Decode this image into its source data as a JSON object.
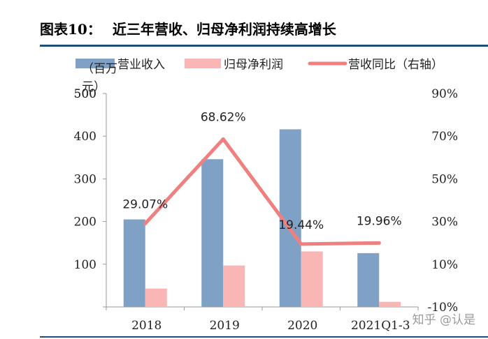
{
  "figure": {
    "number": "图表10：",
    "title": "近三年营收、归母净利润持续高增长"
  },
  "watermark": "知乎 @认是",
  "chart_data": {
    "type": "bar",
    "categories": [
      "2018",
      "2019",
      "2020",
      "2021Q1-3"
    ],
    "y_label": "（百万元）",
    "ylim": [
      0,
      500
    ],
    "y_ticks": [
      0,
      100,
      200,
      300,
      400,
      500
    ],
    "y_tick_labels": [
      "",
      "100",
      "200",
      "300",
      "400",
      "500"
    ],
    "y2lim": [
      -10,
      90
    ],
    "y2_ticks": [
      -10,
      10,
      30,
      50,
      70,
      90
    ],
    "y2_tick_labels": [
      "-10%",
      "10%",
      "30%",
      "50%",
      "70%",
      "90%"
    ],
    "series": [
      {
        "name": "营业收入",
        "kind": "bar",
        "axis": "left",
        "color": "#7fa1c6",
        "values": [
          205,
          346,
          416,
          126
        ]
      },
      {
        "name": "归母净利润",
        "kind": "bar",
        "axis": "left",
        "color": "#f9b6b5",
        "values": [
          43,
          97,
          130,
          12
        ]
      },
      {
        "name": "营收同比（右轴）",
        "kind": "line",
        "axis": "right",
        "color": "#f08080",
        "values": [
          29.07,
          68.62,
          19.44,
          19.96
        ],
        "data_labels": [
          "29.07%",
          "68.62%",
          "19.44%",
          "19.96%"
        ]
      }
    ],
    "legend_position": "top",
    "grid": false
  }
}
